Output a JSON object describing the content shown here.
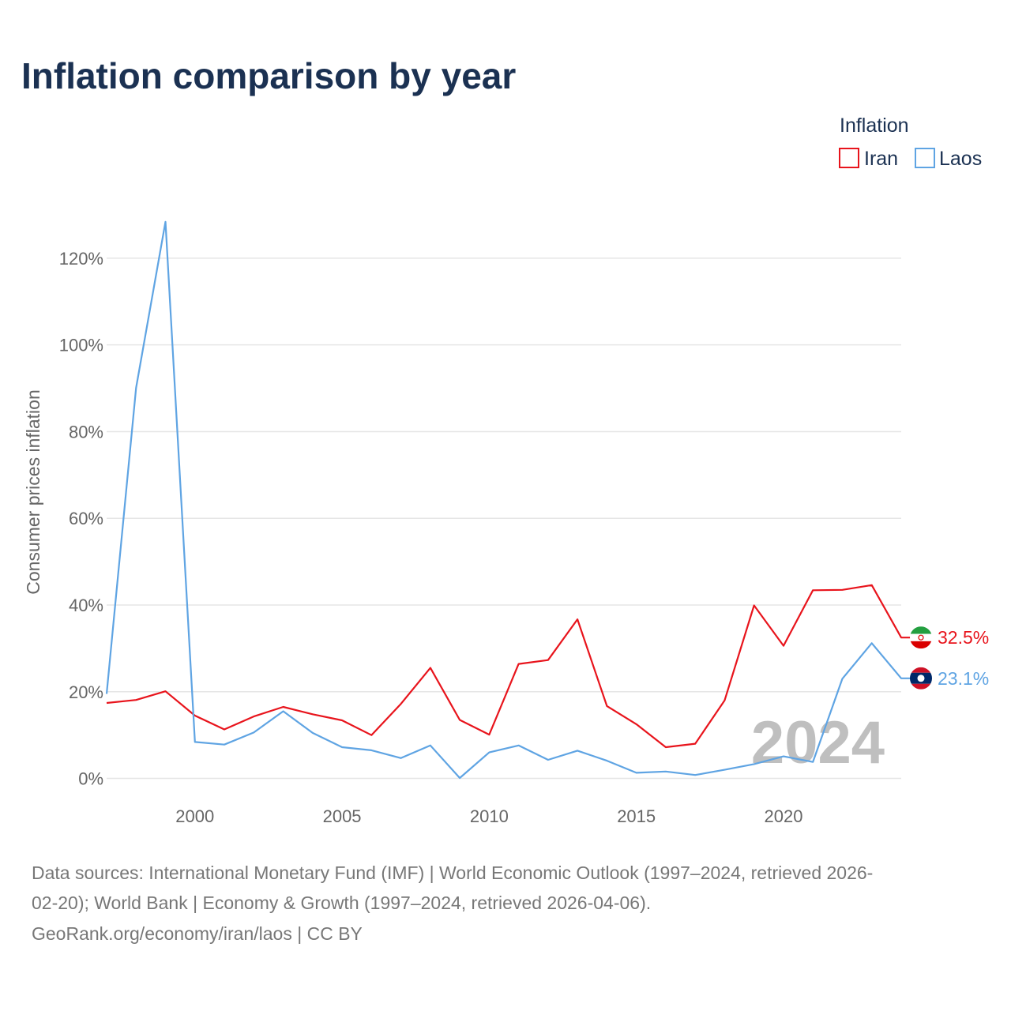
{
  "chart_data": {
    "type": "line",
    "title": "Inflation comparison by year",
    "xlabel": "",
    "ylabel": "Consumer prices inflation",
    "legend_title": "Inflation",
    "legend_position": "top-right",
    "year_label": "2024",
    "xlim": [
      1997,
      2024
    ],
    "ylim": [
      -5,
      130
    ],
    "x_ticks": [
      2000,
      2005,
      2010,
      2015,
      2020
    ],
    "y_ticks": [
      0,
      20,
      40,
      60,
      80,
      100,
      120
    ],
    "y_tick_labels": [
      "0%",
      "20%",
      "40%",
      "60%",
      "80%",
      "100%",
      "120%"
    ],
    "x": [
      1997,
      1998,
      1999,
      2000,
      2001,
      2002,
      2003,
      2004,
      2005,
      2006,
      2007,
      2008,
      2009,
      2010,
      2011,
      2012,
      2013,
      2014,
      2015,
      2016,
      2017,
      2018,
      2019,
      2020,
      2021,
      2022,
      2023,
      2024
    ],
    "series": [
      {
        "name": "Iran",
        "color": "#e8141c",
        "icon": "iran-flag-icon",
        "end_label": "32.5%",
        "values": [
          17.4,
          18.1,
          20.1,
          14.5,
          11.3,
          14.3,
          16.5,
          14.8,
          13.4,
          10.0,
          17.2,
          25.5,
          13.5,
          10.1,
          26.4,
          27.3,
          36.7,
          16.7,
          12.5,
          7.2,
          8.0,
          18.0,
          39.9,
          30.6,
          43.4,
          43.5,
          44.6,
          32.5
        ]
      },
      {
        "name": "Laos",
        "color": "#5fa4e3",
        "icon": "laos-flag-icon",
        "end_label": "23.1%",
        "values": [
          19.5,
          90.1,
          128.4,
          8.4,
          7.8,
          10.6,
          15.5,
          10.5,
          7.2,
          6.5,
          4.7,
          7.6,
          0.1,
          6.0,
          7.6,
          4.3,
          6.4,
          4.1,
          1.3,
          1.6,
          0.8,
          2.0,
          3.3,
          5.1,
          3.8,
          23.0,
          31.2,
          23.1
        ]
      }
    ]
  },
  "source": {
    "line1": "Data sources: International Monetary Fund (IMF) | World Economic Outlook (1997–2024, retrieved 2026-",
    "line2": "02-20); World Bank | Economy & Growth (1997–2024, retrieved 2026-04-06).",
    "line3": "GeoRank.org/economy/iran/laos | CC BY"
  }
}
